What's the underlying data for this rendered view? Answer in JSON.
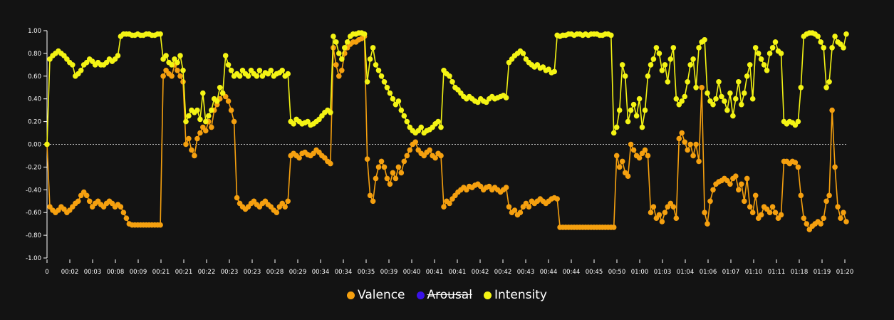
{
  "chart_data": {
    "type": "line",
    "ylim": [
      -1,
      1
    ],
    "yticks": [
      "1.00",
      "0.80",
      "0.60",
      "0.40",
      "0.20",
      "0.00",
      "-0.20",
      "-0.40",
      "-0.60",
      "-0.80",
      "-1.00"
    ],
    "ytick_values": [
      1,
      0.8,
      0.6,
      0.4,
      0.2,
      0,
      -0.2,
      -0.4,
      -0.6,
      -0.8,
      -1
    ],
    "xticks": [
      "0",
      "00:02",
      "00:03",
      "00:08",
      "00:09",
      "00:21",
      "00:21",
      "00:22",
      "00:23",
      "00:23",
      "00:28",
      "00:29",
      "00:34",
      "00:34",
      "00:35",
      "00:39",
      "00:40",
      "00:41",
      "00:41",
      "00:42",
      "00:42",
      "00:43",
      "00:44",
      "00:44",
      "00:45",
      "00:50",
      "01:00",
      "01:03",
      "01:04",
      "01:06",
      "01:07",
      "01:10",
      "01:11",
      "01:18",
      "01:19",
      "01:20"
    ],
    "zero_line": true,
    "legend_position": "bottom-center",
    "series": [
      {
        "name": "Valence",
        "color": "#f5a00f",
        "visible": true,
        "values": [
          0,
          -0.55,
          -0.58,
          -0.6,
          -0.58,
          -0.55,
          -0.57,
          -0.6,
          -0.58,
          -0.55,
          -0.52,
          -0.5,
          -0.45,
          -0.42,
          -0.45,
          -0.5,
          -0.55,
          -0.52,
          -0.5,
          -0.53,
          -0.55,
          -0.52,
          -0.5,
          -0.52,
          -0.55,
          -0.53,
          -0.55,
          -0.6,
          -0.65,
          -0.7,
          -0.71,
          -0.71,
          -0.71,
          -0.71,
          -0.71,
          -0.71,
          -0.71,
          -0.71,
          -0.71,
          -0.71,
          -0.71,
          0.6,
          0.65,
          0.62,
          0.6,
          0.7,
          0.65,
          0.6,
          0.55,
          0.0,
          0.05,
          -0.05,
          -0.1,
          0.05,
          0.1,
          0.15,
          0.12,
          0.2,
          0.15,
          0.3,
          0.35,
          0.4,
          0.45,
          0.42,
          0.38,
          0.3,
          0.2,
          -0.47,
          -0.52,
          -0.55,
          -0.57,
          -0.55,
          -0.52,
          -0.5,
          -0.53,
          -0.55,
          -0.52,
          -0.5,
          -0.53,
          -0.55,
          -0.58,
          -0.6,
          -0.55,
          -0.52,
          -0.55,
          -0.5,
          -0.1,
          -0.08,
          -0.1,
          -0.12,
          -0.08,
          -0.07,
          -0.09,
          -0.1,
          -0.08,
          -0.05,
          -0.07,
          -0.1,
          -0.12,
          -0.15,
          -0.17,
          0.85,
          0.7,
          0.6,
          0.65,
          0.8,
          0.85,
          0.88,
          0.9,
          0.9,
          0.92,
          0.93,
          0.95,
          -0.13,
          -0.45,
          -0.5,
          -0.3,
          -0.2,
          -0.15,
          -0.2,
          -0.3,
          -0.35,
          -0.25,
          -0.3,
          -0.2,
          -0.25,
          -0.15,
          -0.1,
          -0.05,
          0.0,
          0.02,
          -0.05,
          -0.08,
          -0.1,
          -0.07,
          -0.05,
          -0.1,
          -0.12,
          -0.08,
          -0.1,
          -0.55,
          -0.5,
          -0.52,
          -0.48,
          -0.45,
          -0.42,
          -0.4,
          -0.38,
          -0.4,
          -0.37,
          -0.38,
          -0.36,
          -0.35,
          -0.37,
          -0.4,
          -0.38,
          -0.37,
          -0.4,
          -0.38,
          -0.4,
          -0.42,
          -0.4,
          -0.38,
          -0.55,
          -0.6,
          -0.58,
          -0.62,
          -0.6,
          -0.55,
          -0.52,
          -0.55,
          -0.5,
          -0.52,
          -0.5,
          -0.48,
          -0.5,
          -0.52,
          -0.5,
          -0.48,
          -0.47,
          -0.48,
          -0.73,
          -0.73,
          -0.73,
          -0.73,
          -0.73,
          -0.73,
          -0.73,
          -0.73,
          -0.73,
          -0.73,
          -0.73,
          -0.73,
          -0.73,
          -0.73,
          -0.73,
          -0.73,
          -0.73,
          -0.73,
          -0.73,
          -0.73,
          -0.1,
          -0.2,
          -0.15,
          -0.25,
          -0.28,
          0.0,
          -0.05,
          -0.1,
          -0.12,
          -0.08,
          -0.05,
          -0.1,
          -0.6,
          -0.55,
          -0.65,
          -0.62,
          -0.68,
          -0.6,
          -0.55,
          -0.52,
          -0.55,
          -0.65,
          0.05,
          0.1,
          0.02,
          -0.05,
          0.0,
          -0.1,
          0.0,
          -0.15,
          0.5,
          -0.6,
          -0.7,
          -0.5,
          -0.4,
          -0.35,
          -0.33,
          -0.32,
          -0.3,
          -0.32,
          -0.35,
          -0.3,
          -0.28,
          -0.4,
          -0.35,
          -0.5,
          -0.3,
          -0.55,
          -0.6,
          -0.45,
          -0.65,
          -0.62,
          -0.55,
          -0.57,
          -0.6,
          -0.55,
          -0.6,
          -0.65,
          -0.62,
          -0.15,
          -0.15,
          -0.17,
          -0.15,
          -0.16,
          -0.2,
          -0.45,
          -0.65,
          -0.7,
          -0.75,
          -0.72,
          -0.7,
          -0.68,
          -0.7,
          -0.65,
          -0.5,
          -0.45,
          0.3,
          -0.2,
          -0.55,
          -0.65,
          -0.6,
          -0.68
        ],
        "display_values": "sampled"
      },
      {
        "name": "Arousal",
        "color": "#3a12e8",
        "visible": false,
        "values": []
      },
      {
        "name": "Intensity",
        "color": "#f4f414",
        "visible": true,
        "values": [
          0,
          0.75,
          0.78,
          0.8,
          0.82,
          0.8,
          0.78,
          0.75,
          0.72,
          0.7,
          0.6,
          0.62,
          0.65,
          0.7,
          0.72,
          0.75,
          0.73,
          0.7,
          0.72,
          0.7,
          0.7,
          0.72,
          0.75,
          0.73,
          0.75,
          0.78,
          0.95,
          0.97,
          0.97,
          0.97,
          0.96,
          0.96,
          0.97,
          0.96,
          0.96,
          0.97,
          0.97,
          0.96,
          0.96,
          0.97,
          0.97,
          0.75,
          0.78,
          0.72,
          0.7,
          0.75,
          0.72,
          0.78,
          0.65,
          0.2,
          0.25,
          0.3,
          0.28,
          0.3,
          0.22,
          0.45,
          0.2,
          0.25,
          0.3,
          0.4,
          0.38,
          0.5,
          0.45,
          0.78,
          0.7,
          0.65,
          0.6,
          0.62,
          0.6,
          0.65,
          0.62,
          0.6,
          0.65,
          0.62,
          0.6,
          0.65,
          0.6,
          0.63,
          0.62,
          0.65,
          0.6,
          0.62,
          0.63,
          0.65,
          0.6,
          0.62,
          0.2,
          0.18,
          0.22,
          0.2,
          0.18,
          0.19,
          0.2,
          0.17,
          0.18,
          0.2,
          0.22,
          0.25,
          0.28,
          0.3,
          0.28,
          0.95,
          0.9,
          0.8,
          0.75,
          0.85,
          0.9,
          0.95,
          0.97,
          0.97,
          0.98,
          0.98,
          0.97,
          0.55,
          0.75,
          0.85,
          0.7,
          0.65,
          0.6,
          0.55,
          0.5,
          0.45,
          0.4,
          0.35,
          0.38,
          0.3,
          0.25,
          0.2,
          0.15,
          0.12,
          0.1,
          0.12,
          0.15,
          0.1,
          0.12,
          0.13,
          0.15,
          0.18,
          0.2,
          0.15,
          0.65,
          0.62,
          0.6,
          0.55,
          0.5,
          0.48,
          0.45,
          0.42,
          0.4,
          0.42,
          0.4,
          0.38,
          0.37,
          0.4,
          0.38,
          0.37,
          0.4,
          0.42,
          0.4,
          0.41,
          0.42,
          0.43,
          0.41,
          0.72,
          0.75,
          0.78,
          0.8,
          0.82,
          0.8,
          0.75,
          0.72,
          0.7,
          0.68,
          0.7,
          0.67,
          0.68,
          0.65,
          0.66,
          0.63,
          0.64,
          0.96,
          0.95,
          0.96,
          0.96,
          0.97,
          0.97,
          0.96,
          0.97,
          0.97,
          0.96,
          0.97,
          0.96,
          0.97,
          0.97,
          0.97,
          0.96,
          0.96,
          0.97,
          0.97,
          0.96,
          0.1,
          0.15,
          0.3,
          0.7,
          0.6,
          0.2,
          0.3,
          0.35,
          0.25,
          0.4,
          0.15,
          0.3,
          0.6,
          0.7,
          0.75,
          0.85,
          0.8,
          0.65,
          0.7,
          0.55,
          0.75,
          0.85,
          0.4,
          0.35,
          0.38,
          0.42,
          0.55,
          0.7,
          0.75,
          0.5,
          0.85,
          0.9,
          0.92,
          0.45,
          0.38,
          0.35,
          0.4,
          0.55,
          0.42,
          0.38,
          0.3,
          0.45,
          0.25,
          0.4,
          0.55,
          0.35,
          0.45,
          0.6,
          0.7,
          0.4,
          0.85,
          0.8,
          0.75,
          0.7,
          0.65,
          0.8,
          0.85,
          0.9,
          0.82,
          0.8,
          0.2,
          0.18,
          0.2,
          0.19,
          0.17,
          0.2,
          0.5,
          0.95,
          0.97,
          0.98,
          0.98,
          0.97,
          0.95,
          0.9,
          0.85,
          0.5,
          0.55,
          0.85,
          0.95,
          0.9,
          0.88,
          0.85,
          0.97
        ],
        "display_values": "sampled"
      }
    ]
  },
  "legend": {
    "items": [
      {
        "label": "Valence",
        "color": "#f5a00f"
      },
      {
        "label": "Arousal",
        "color": "#3a12e8"
      },
      {
        "label": "Intensity",
        "color": "#f4f414"
      }
    ]
  }
}
